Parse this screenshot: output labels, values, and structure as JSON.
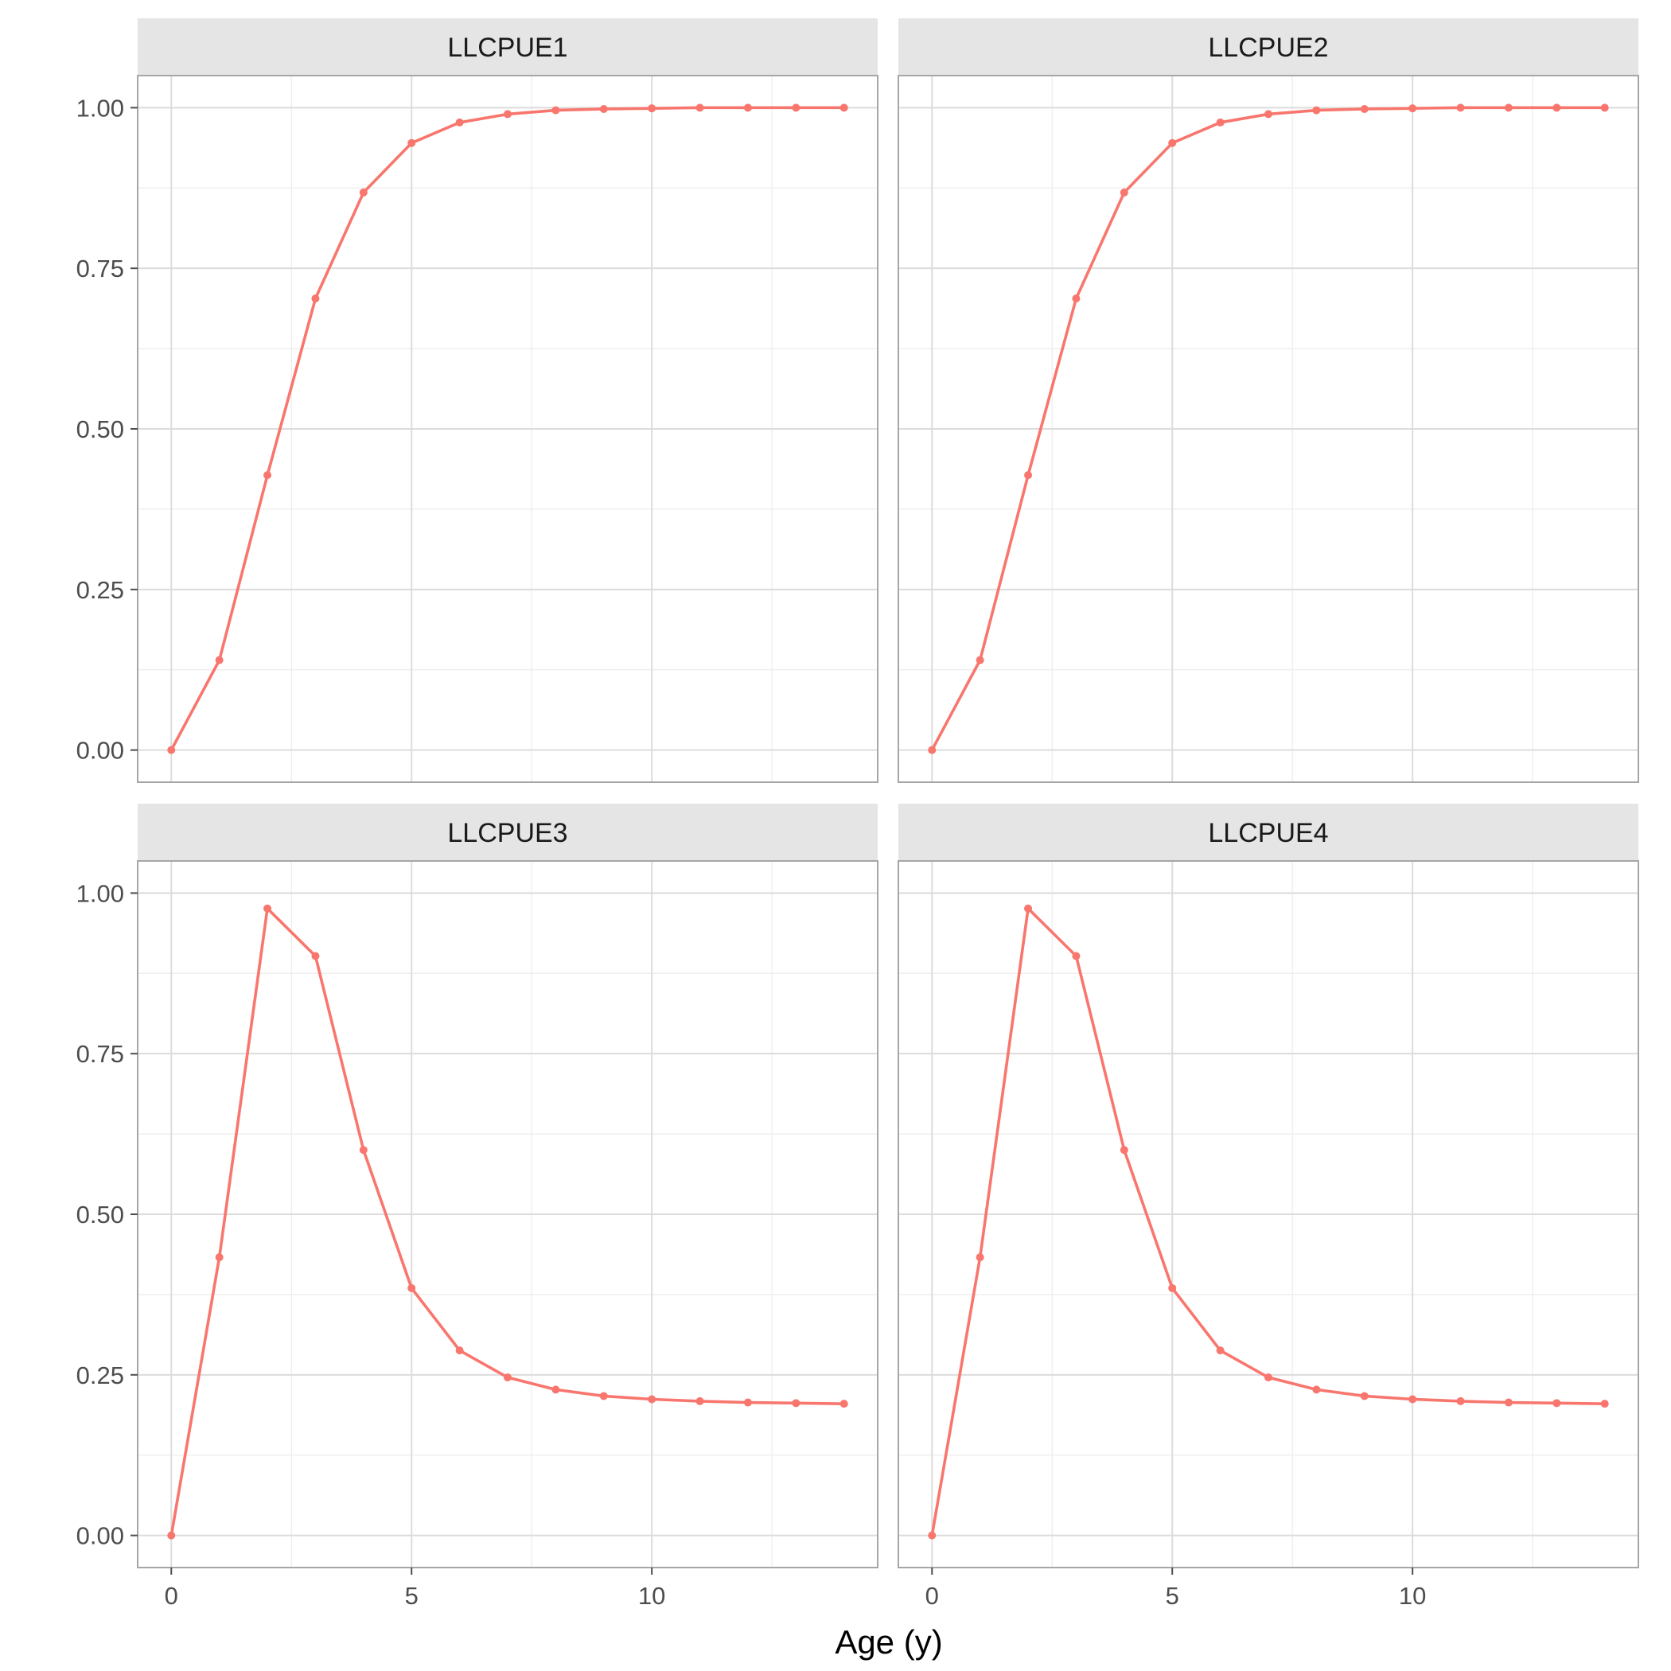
{
  "chart_data": {
    "type": "line",
    "xlabel": "Age (y)",
    "ylabel": "",
    "xlim": [
      -0.7,
      14.7
    ],
    "ylim": [
      -0.05,
      1.05
    ],
    "x_ticks": [
      0,
      5,
      10
    ],
    "y_ticks": [
      0,
      0.25,
      0.5,
      0.75,
      1.0
    ],
    "y_tick_labels": [
      "0.00",
      "0.25",
      "0.50",
      "0.75",
      "1.00"
    ],
    "grid": true,
    "legend": "none",
    "color": "#F8766D",
    "x": [
      0,
      1,
      2,
      3,
      4,
      5,
      6,
      7,
      8,
      9,
      10,
      11,
      12,
      13,
      14
    ],
    "panels": [
      {
        "label": "LLCPUE1",
        "values": [
          0.0,
          0.14,
          0.428,
          0.703,
          0.868,
          0.945,
          0.977,
          0.99,
          0.996,
          0.998,
          0.999,
          1.0,
          1.0,
          1.0,
          1.0
        ]
      },
      {
        "label": "LLCPUE2",
        "values": [
          0.0,
          0.14,
          0.428,
          0.703,
          0.868,
          0.945,
          0.977,
          0.99,
          0.996,
          0.998,
          0.999,
          1.0,
          1.0,
          1.0,
          1.0
        ]
      },
      {
        "label": "LLCPUE3",
        "values": [
          0.0,
          0.433,
          0.976,
          0.902,
          0.6,
          0.385,
          0.288,
          0.246,
          0.227,
          0.217,
          0.212,
          0.209,
          0.207,
          0.206,
          0.205
        ]
      },
      {
        "label": "LLCPUE4",
        "values": [
          0.0,
          0.433,
          0.976,
          0.902,
          0.6,
          0.385,
          0.288,
          0.246,
          0.227,
          0.217,
          0.212,
          0.209,
          0.207,
          0.206,
          0.205
        ]
      }
    ]
  }
}
